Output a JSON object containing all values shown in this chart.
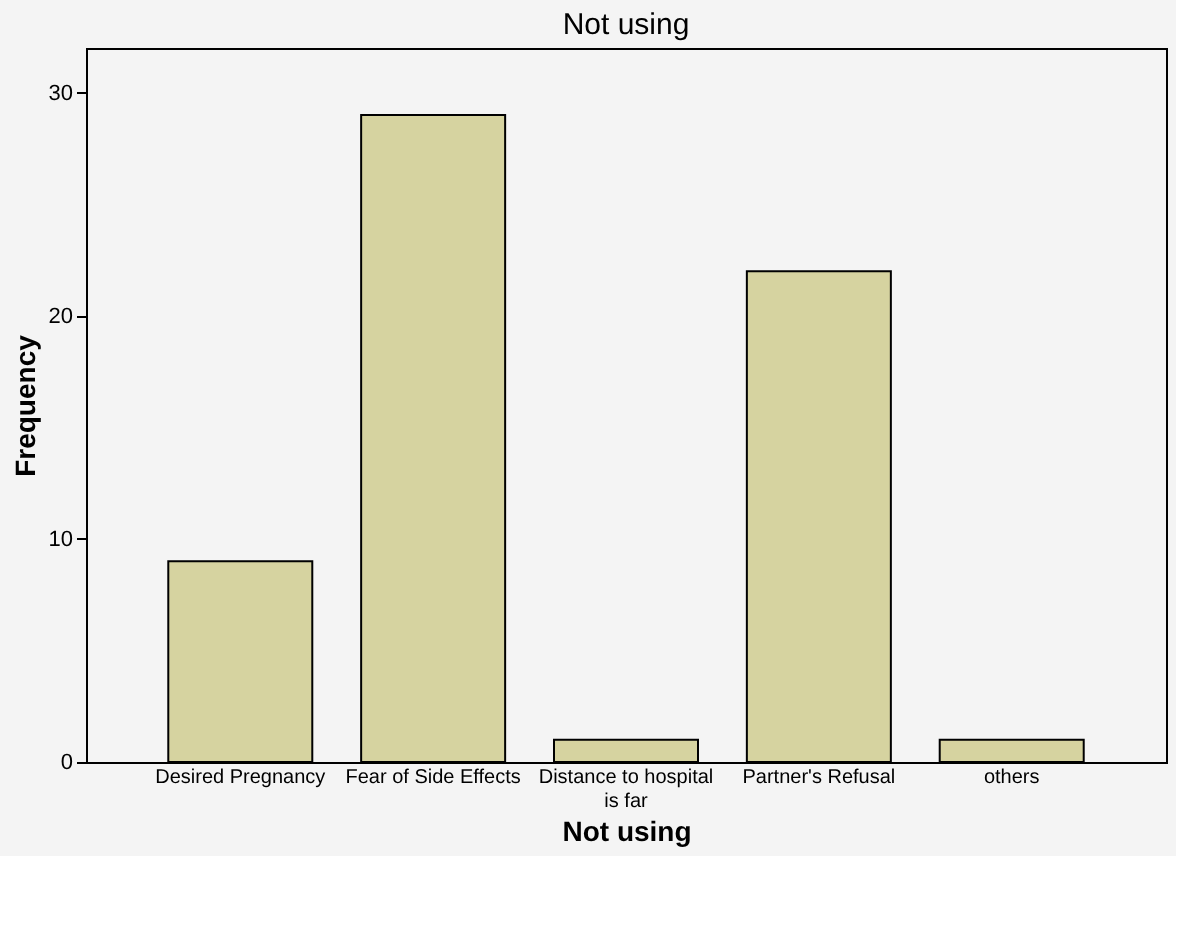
{
  "chart_data": {
    "type": "bar",
    "title": "Not using",
    "xlabel": "Not using",
    "ylabel": "Frequency",
    "categories": [
      "Desired Pregnancy",
      "Fear of Side Effects",
      "Distance to hospital is far",
      "Partner's Refusal",
      "others"
    ],
    "values": [
      9,
      29,
      1,
      22,
      1
    ],
    "color": "#d6d3a0",
    "ylim": [
      0,
      32
    ],
    "yticks": [
      0,
      10,
      20,
      30
    ],
    "grid": false
  }
}
